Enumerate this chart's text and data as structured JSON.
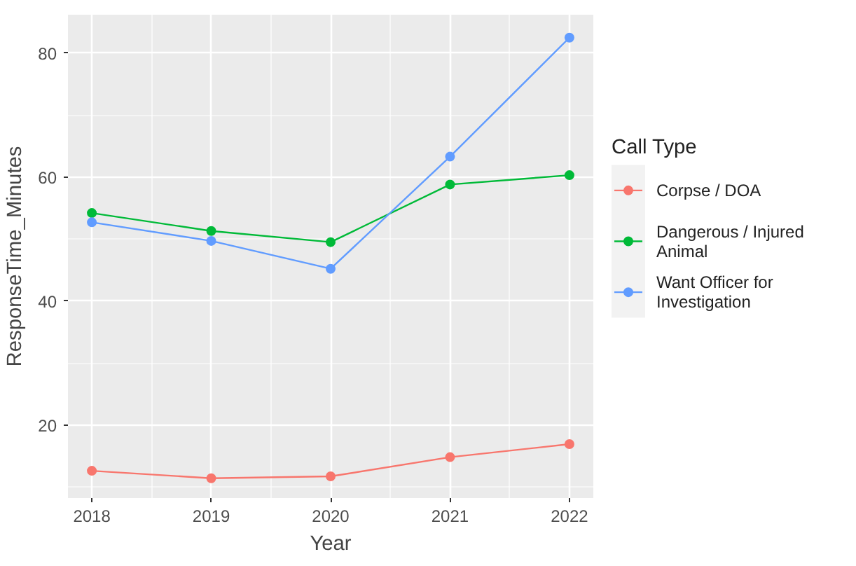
{
  "chart_data": {
    "type": "line",
    "xlabel": "Year",
    "ylabel": "ResponseTime_Minutes",
    "legend_title": "Call Type",
    "x": [
      2018,
      2019,
      2020,
      2021,
      2022
    ],
    "series": [
      {
        "name": "Corpse / DOA",
        "color": "#f8766d",
        "values": [
          12.6,
          11.4,
          11.7,
          14.8,
          16.9
        ]
      },
      {
        "name": "Dangerous / Injured Animal",
        "color": "#00ba38",
        "values": [
          54.2,
          51.3,
          49.5,
          58.8,
          60.3
        ]
      },
      {
        "name": "Want Officer for Investigation",
        "color": "#619cff",
        "values": [
          52.7,
          49.7,
          45.2,
          63.3,
          82.5
        ]
      }
    ],
    "xlim": [
      2017.8,
      2022.2
    ],
    "ylim": [
      8.2,
      86.2
    ],
    "xticks": [
      2018,
      2019,
      2020,
      2021,
      2022
    ],
    "yticks": [
      20,
      40,
      60,
      80
    ],
    "grid": true,
    "legend": "right",
    "marker": "circle",
    "line_style": "solid"
  }
}
